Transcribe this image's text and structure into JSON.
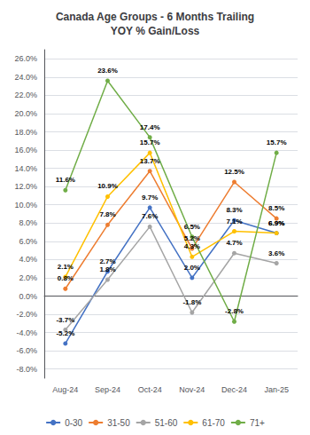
{
  "chart_data": {
    "type": "line",
    "title": "Canada Age Groups - 6 Months Trailing\nYOY % Gain/Loss",
    "categories": [
      "Aug-24",
      "Sep-24",
      "Oct-24",
      "Nov-24",
      "Dec-24",
      "Jan-25"
    ],
    "series": [
      {
        "name": "0-30",
        "color": "#4472C4",
        "values": [
          -5.2,
          2.7,
          9.7,
          2.0,
          8.3,
          6.9
        ],
        "value_labels": [
          "-5.2%",
          "2.7%",
          "9.7%",
          "2.0%",
          "8.3%",
          "6.9%"
        ]
      },
      {
        "name": "31-50",
        "color": "#ED7D31",
        "values": [
          0.8,
          7.8,
          13.7,
          5.2,
          12.5,
          8.5
        ],
        "value_labels": [
          "0.8%",
          "7.8%",
          "13.7%",
          "5.2%",
          "12.5%",
          "8.5%"
        ]
      },
      {
        "name": "51-60",
        "color": "#A5A5A5",
        "values": [
          -3.7,
          1.8,
          7.6,
          -1.8,
          4.7,
          3.6
        ],
        "value_labels": [
          "-3.7%",
          "1.8%",
          "7.6%",
          "-1.8%",
          "4.7%",
          "3.6%"
        ]
      },
      {
        "name": "61-70",
        "color": "#FFC000",
        "values": [
          2.1,
          10.9,
          15.7,
          4.3,
          7.1,
          6.9
        ],
        "value_labels": [
          "2.1%",
          "10.9%",
          "15.7%",
          "4.3%",
          "7.1%",
          "6.9%"
        ]
      },
      {
        "name": "71+",
        "color": "#70AD47",
        "values": [
          11.6,
          23.6,
          17.4,
          6.5,
          -2.8,
          15.7
        ],
        "value_labels": [
          "11.6%",
          "23.6%",
          "17.4%",
          "6.5%",
          "-2.8%",
          "15.7%"
        ]
      }
    ],
    "ylim": [
      -9.0,
      27.0
    ],
    "yticks": [
      {
        "value": -8.0,
        "label": "-8.0%"
      },
      {
        "value": -6.0,
        "label": "-6.0%"
      },
      {
        "value": -4.0,
        "label": "-4.0%"
      },
      {
        "value": -2.0,
        "label": "-2.0%"
      },
      {
        "value": 0.0,
        "label": "0.0%"
      },
      {
        "value": 2.0,
        "label": "2.0%"
      },
      {
        "value": 4.0,
        "label": "4.0%"
      },
      {
        "value": 6.0,
        "label": "6.0%"
      },
      {
        "value": 8.0,
        "label": "8.0%"
      },
      {
        "value": 10.0,
        "label": "10.0%"
      },
      {
        "value": 12.0,
        "label": "12.0%"
      },
      {
        "value": 14.0,
        "label": "14.0%"
      },
      {
        "value": 16.0,
        "label": "16.0%"
      },
      {
        "value": 18.0,
        "label": "18.0%"
      },
      {
        "value": 20.0,
        "label": "20.0%"
      },
      {
        "value": 22.0,
        "label": "22.0%"
      },
      {
        "value": 24.0,
        "label": "24.0%"
      },
      {
        "value": 26.0,
        "label": "26.0%"
      }
    ],
    "grid": true,
    "legend": "bottom",
    "data_labels": true,
    "marker": "circle"
  }
}
